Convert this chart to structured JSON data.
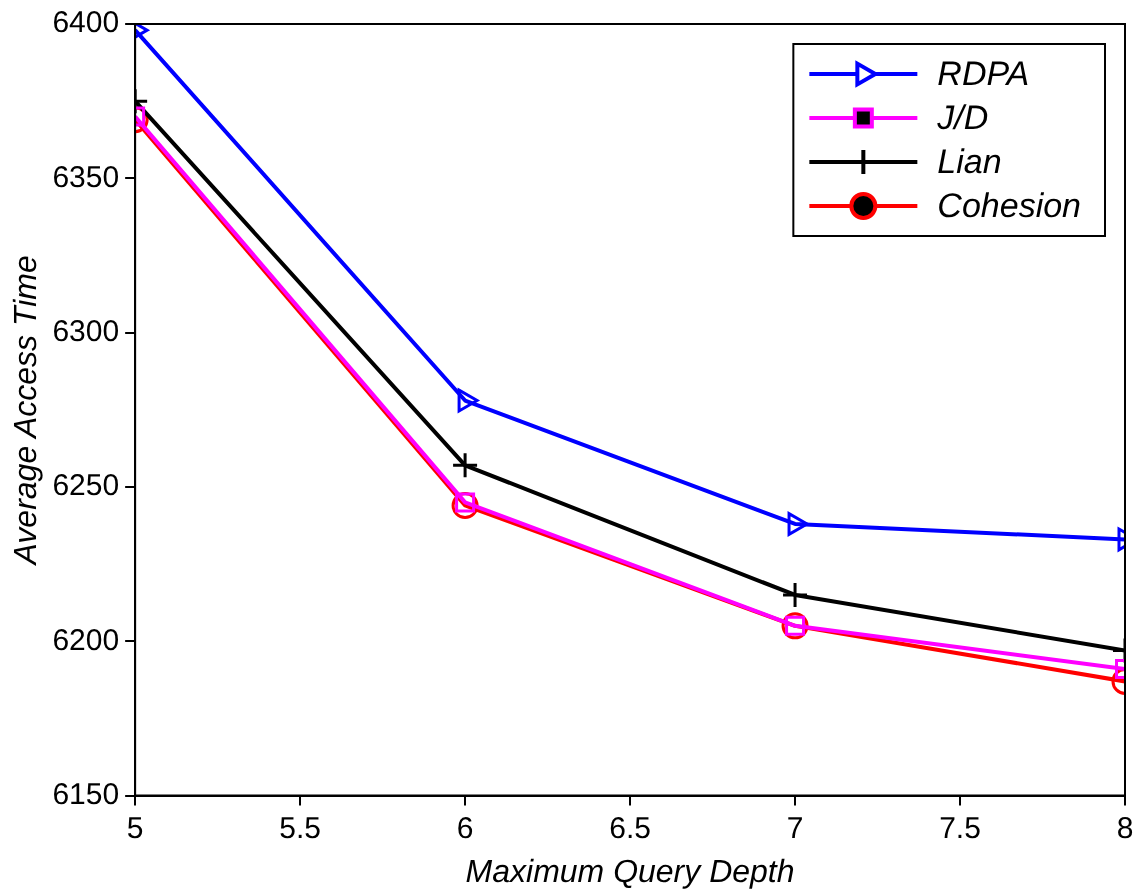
{
  "chart_data": {
    "type": "line",
    "xlabel": "Maximum Query Depth",
    "ylabel": "Average Access Time",
    "x": [
      5,
      6,
      7,
      8
    ],
    "xlim": [
      5,
      8
    ],
    "xticks": [
      5,
      5.5,
      6,
      6.5,
      7,
      7.5,
      8
    ],
    "ylim": [
      6150,
      6400
    ],
    "yticks": [
      6150,
      6200,
      6250,
      6300,
      6350,
      6400
    ],
    "grid": false,
    "legend": "top right",
    "line_style": "solid",
    "series": [
      {
        "name": "RDPA",
        "color": "#0000ff",
        "marker": "triangle",
        "values": [
          6398,
          6278,
          6238,
          6233
        ]
      },
      {
        "name": "J/D",
        "color": "#ff00ff",
        "marker": "square",
        "values": [
          6370,
          6245,
          6205,
          6191
        ]
      },
      {
        "name": "Lian",
        "color": "#000000",
        "marker": "cross",
        "values": [
          6375,
          6257,
          6215,
          6197
        ]
      },
      {
        "name": "Cohesion",
        "color": "#ff0000",
        "marker": "circle",
        "values": [
          6369,
          6244,
          6205,
          6187
        ]
      }
    ]
  }
}
